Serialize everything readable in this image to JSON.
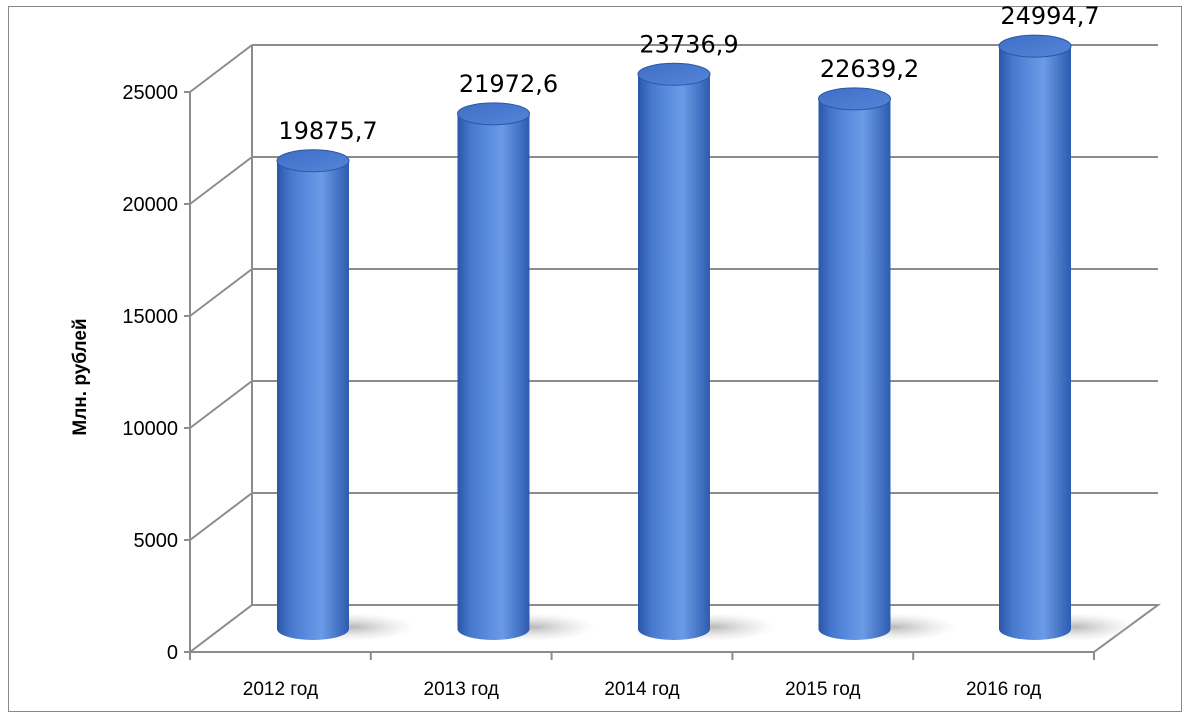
{
  "chart_data": {
    "type": "bar",
    "style": "3d-cylinder",
    "categories": [
      "2012 год",
      "2013 год",
      "2014 год",
      "2015 год",
      "2016 год"
    ],
    "values": [
      19875.7,
      21972.6,
      23736.9,
      22639.2,
      24994.7
    ],
    "data_labels": [
      "19875,7",
      "21972,6",
      "23736,9",
      "22639,2",
      "24994,7"
    ],
    "title": "",
    "xlabel": "",
    "ylabel": "Млн. рублей",
    "ylim": [
      0,
      25000
    ],
    "yticks": [
      "0",
      "5000",
      "10000",
      "15000",
      "20000",
      "25000"
    ],
    "grid": true,
    "legend": "none",
    "colors": {
      "bar": "#4f81d8",
      "bar_dark": "#2a56a8",
      "bar_light": "#8fb6f2",
      "grid": "#8c8c8c"
    }
  }
}
